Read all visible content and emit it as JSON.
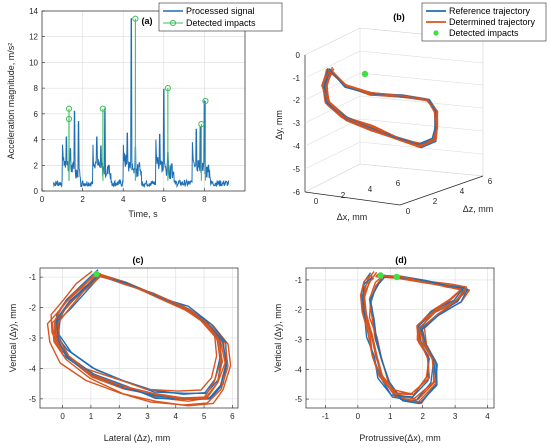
{
  "chart_data": [
    {
      "id": "a",
      "type": "line",
      "title": "(a)",
      "xlabel": "Time, s",
      "ylabel": "Acceleration magnitude, m/s²",
      "xlim": [
        0,
        10
      ],
      "ylim": [
        0,
        14
      ],
      "xticks": [
        "0",
        "2",
        "4",
        "6",
        "8"
      ],
      "yticks": [
        "0",
        "2",
        "4",
        "6",
        "8",
        "10",
        "12",
        "14"
      ],
      "grid": true,
      "legend": "top-right",
      "series": [
        {
          "name": "Processed signal",
          "color": "#1f6fb5",
          "bursts": [
            {
              "t": 1.0,
              "peaks": [
                3.6,
                4.2,
                3.3,
                6.2,
                5.4
              ]
            },
            {
              "t": 2.5,
              "peaks": [
                3.6,
                4.2,
                3.5,
                6.4,
                2.0
              ]
            },
            {
              "t": 4.0,
              "peaks": [
                3.6,
                4.5,
                13.4,
                3.4,
                2.2
              ]
            },
            {
              "t": 5.6,
              "peaks": [
                4.0,
                4.4,
                7.9,
                3.0,
                2.1
              ]
            },
            {
              "t": 7.4,
              "peaks": [
                3.8,
                4.8,
                5.0,
                7.0,
                2.0
              ]
            }
          ]
        },
        {
          "name": "Detected impacts",
          "color": "#3fbf5a",
          "t": [
            1.33,
            1.33,
            3.0,
            4.6,
            6.2,
            7.85,
            8.05
          ],
          "values": [
            6.4,
            5.6,
            6.4,
            13.4,
            8.0,
            5.2,
            7.0
          ]
        }
      ]
    },
    {
      "id": "b",
      "type": "line3d",
      "title": "(b)",
      "xlabel": "Δx, mm",
      "ylabel": "Δy, mm",
      "zlabel": "Δz, mm",
      "xticks": [
        "0",
        "2",
        "4",
        "6"
      ],
      "yticks": [
        "0",
        "-1",
        "-2",
        "-3",
        "-4",
        "-5",
        "-6"
      ],
      "zticks": [
        "0",
        "2",
        "4",
        "6"
      ],
      "legend": "top-right",
      "series": [
        {
          "name": "Reference trajectory",
          "color": "#1f6fb5"
        },
        {
          "name": "Determined trajectory",
          "color": "#d9541e"
        },
        {
          "name": "Detected impacts",
          "color": "#44dd44"
        }
      ]
    },
    {
      "id": "c",
      "type": "line",
      "title": "(c)",
      "xlabel": "Lateral (Δz), mm",
      "ylabel": "Vertical (Δy), mm",
      "xlim": [
        -0.8,
        6.2
      ],
      "ylim": [
        -5.3,
        -0.7
      ],
      "xticks": [
        "0",
        "1",
        "2",
        "3",
        "4",
        "5",
        "6"
      ],
      "yticks": [
        "-1",
        "-2",
        "-3",
        "-4",
        "-5"
      ],
      "grid": true,
      "series": [
        {
          "name": "Reference trajectory",
          "color": "#1f6fb5"
        },
        {
          "name": "Determined trajectory",
          "color": "#d9541e"
        },
        {
          "name": "Detected impacts",
          "color": "#44dd44",
          "x": [
            1.2
          ],
          "y": [
            -0.9
          ]
        }
      ],
      "loop": {
        "x": [
          1.2,
          2.2,
          3.3,
          4.3,
          5.1,
          5.6,
          5.7,
          5.5,
          5.1,
          4.3,
          3.2,
          2.1,
          1.0,
          0.1,
          -0.3,
          -0.3,
          0.1,
          0.6,
          1.2
        ],
        "y": [
          -0.9,
          -1.2,
          -1.6,
          -2.0,
          -2.5,
          -3.1,
          -3.8,
          -4.5,
          -4.95,
          -5.0,
          -4.9,
          -4.6,
          -4.2,
          -3.6,
          -3.0,
          -2.4,
          -1.9,
          -1.4,
          -0.9
        ]
      }
    },
    {
      "id": "d",
      "type": "line",
      "title": "(d)",
      "xlabel": "Protrussive(Δx), mm",
      "ylabel": "Vertical (Δy), mm",
      "xlim": [
        -1.6,
        4.2
      ],
      "ylim": [
        -5.3,
        -0.6
      ],
      "xticks": [
        "-1",
        "0",
        "1",
        "2",
        "3",
        "4"
      ],
      "yticks": [
        "-1",
        "-2",
        "-3",
        "-4",
        "-5"
      ],
      "grid": true,
      "series": [
        {
          "name": "Reference trajectory",
          "color": "#1f6fb5"
        },
        {
          "name": "Determined trajectory",
          "color": "#d9541e"
        },
        {
          "name": "Detected impacts",
          "color": "#44dd44",
          "x": [
            0.7,
            1.2
          ],
          "y": [
            -0.85,
            -0.9
          ]
        }
      ],
      "loop": {
        "x": [
          0.6,
          1.3,
          2.1,
          2.8,
          3.3,
          3.0,
          2.4,
          1.9,
          2.0,
          2.3,
          2.3,
          1.8,
          1.2,
          0.8,
          0.6,
          0.45,
          0.3,
          0.25,
          0.4,
          0.6
        ],
        "y": [
          -0.85,
          -0.9,
          -1.05,
          -1.2,
          -1.3,
          -1.7,
          -2.1,
          -2.6,
          -3.1,
          -3.7,
          -4.4,
          -5.0,
          -4.9,
          -4.3,
          -3.6,
          -2.9,
          -2.2,
          -1.6,
          -1.1,
          -0.85
        ]
      }
    }
  ]
}
